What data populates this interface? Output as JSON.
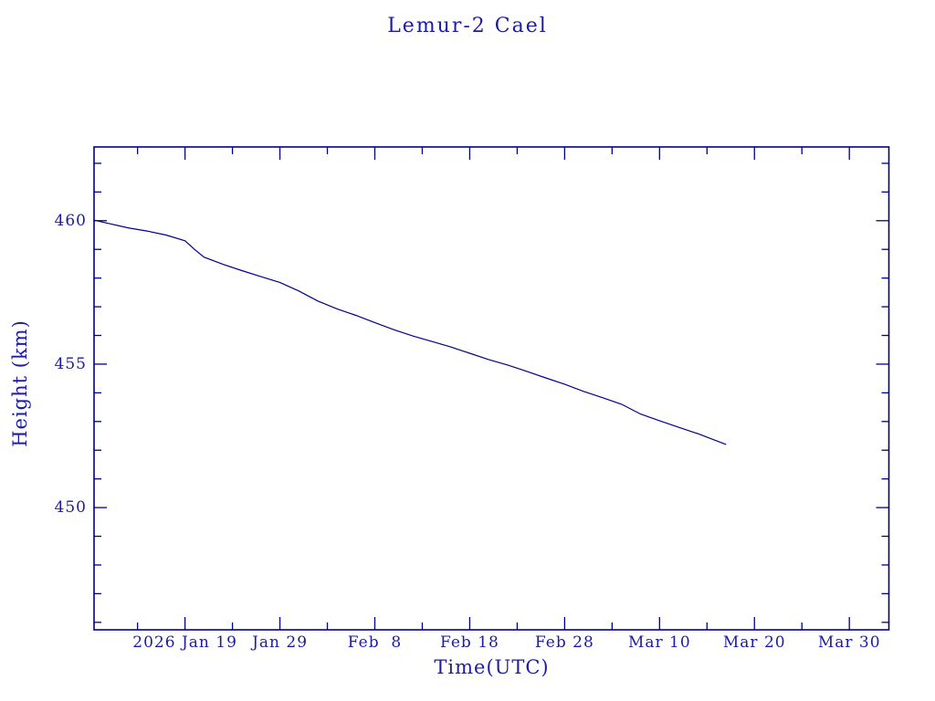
{
  "title": "Lemur-2 Cael",
  "colors": {
    "background": "#ffffff",
    "text": "#1b1ba6",
    "axis": "#00008b",
    "series": "#00008b"
  },
  "chart_data": {
    "type": "line",
    "title": "Lemur-2 Cael",
    "xlabel": "Time(UTC)",
    "ylabel": "Height (km)",
    "grid": false,
    "legend": "none",
    "x_axis": {
      "lim": [
        "2026-01-09T10:00:00Z",
        "2026-04-03T04:00:00Z"
      ],
      "major_ticks": [
        {
          "date": "2026-01-19",
          "label": "2026 Jan 19"
        },
        {
          "date": "2026-01-29",
          "label": "Jan 29"
        },
        {
          "date": "2026-02-08",
          "label": "Feb  8"
        },
        {
          "date": "2026-02-18",
          "label": "Feb 18"
        },
        {
          "date": "2026-02-28",
          "label": "Feb 28"
        },
        {
          "date": "2026-03-10",
          "label": "Mar 10"
        },
        {
          "date": "2026-03-20",
          "label": "Mar 20"
        },
        {
          "date": "2026-03-30",
          "label": "Mar 30"
        }
      ],
      "minor_tick_dates": [
        "2026-01-14",
        "2026-01-24",
        "2026-02-03",
        "2026-02-13",
        "2026-02-23",
        "2026-03-05",
        "2026-03-15",
        "2026-03-25"
      ]
    },
    "y_axis": {
      "lim": [
        445.74,
        462.57
      ],
      "major_ticks": [
        {
          "value": 450,
          "label": "450"
        },
        {
          "value": 455,
          "label": "455"
        },
        {
          "value": 460,
          "label": "460"
        }
      ],
      "minor_step": 1,
      "minor_range": [
        446,
        462
      ]
    },
    "series": [
      {
        "name": "height",
        "color": "#00008b",
        "points": [
          [
            "2026-01-09T10:00:00Z",
            460.02
          ],
          [
            "2026-01-11",
            459.9
          ],
          [
            "2026-01-13",
            459.75
          ],
          [
            "2026-01-15",
            459.64
          ],
          [
            "2026-01-17",
            459.5
          ],
          [
            "2026-01-19",
            459.3
          ],
          [
            "2026-01-20",
            459.0
          ],
          [
            "2026-01-21",
            458.73
          ],
          [
            "2026-01-23",
            458.48
          ],
          [
            "2026-01-25",
            458.26
          ],
          [
            "2026-01-27",
            458.05
          ],
          [
            "2026-01-29",
            457.85
          ],
          [
            "2026-01-31",
            457.55
          ],
          [
            "2026-02-02",
            457.2
          ],
          [
            "2026-02-04",
            456.93
          ],
          [
            "2026-02-06",
            456.7
          ],
          [
            "2026-02-08",
            456.45
          ],
          [
            "2026-02-10",
            456.2
          ],
          [
            "2026-02-12",
            455.98
          ],
          [
            "2026-02-14",
            455.79
          ],
          [
            "2026-02-16",
            455.6
          ],
          [
            "2026-02-18",
            455.38
          ],
          [
            "2026-02-20",
            455.16
          ],
          [
            "2026-02-22",
            454.97
          ],
          [
            "2026-02-24",
            454.75
          ],
          [
            "2026-02-26",
            454.52
          ],
          [
            "2026-02-28",
            454.3
          ],
          [
            "2026-03-02",
            454.05
          ],
          [
            "2026-03-04",
            453.83
          ],
          [
            "2026-03-06",
            453.6
          ],
          [
            "2026-03-08",
            453.26
          ],
          [
            "2026-03-10",
            453.03
          ],
          [
            "2026-03-12",
            452.8
          ],
          [
            "2026-03-14",
            452.58
          ],
          [
            "2026-03-16",
            452.33
          ],
          [
            "2026-03-17",
            452.2
          ]
        ]
      }
    ]
  }
}
